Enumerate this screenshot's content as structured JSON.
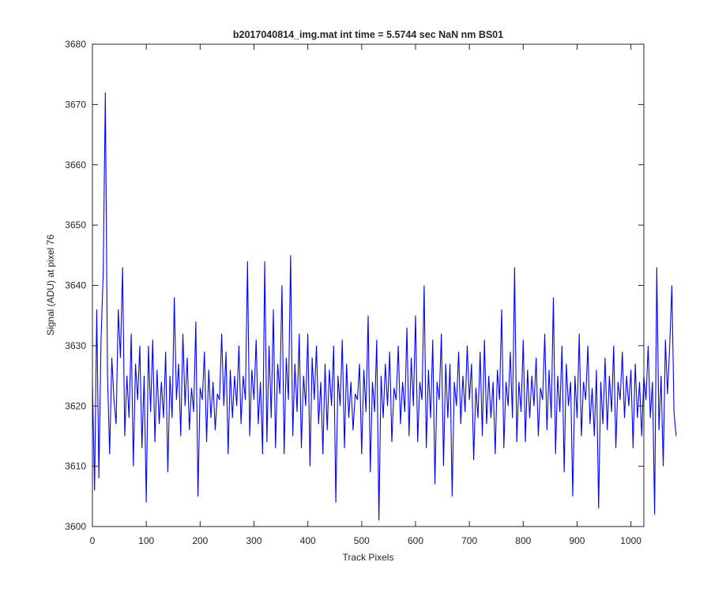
{
  "chart_data": {
    "type": "line",
    "title": "b2017040814_img.mat int time = 5.5744 sec  NaN nm BS01",
    "xlabel": "Track Pixels",
    "ylabel": "Signal (ADU) at pixel 76",
    "xlim": [
      0,
      1024
    ],
    "ylim": [
      3600,
      3680
    ],
    "xticks": [
      0,
      100,
      200,
      300,
      400,
      500,
      600,
      700,
      800,
      900,
      1000
    ],
    "yticks": [
      3600,
      3610,
      3620,
      3630,
      3640,
      3650,
      3660,
      3670,
      3680
    ],
    "grid": false,
    "legend": "none",
    "series": [
      {
        "color": "#0000ff",
        "sampling": "one sample every 4 track pixels (x = 0, 4, 8, ... 1020)",
        "values": [
          3624,
          3606,
          3636,
          3608,
          3631,
          3642,
          3672,
          3625,
          3612,
          3628,
          3621,
          3617,
          3636,
          3628,
          3643,
          3615,
          3625,
          3618,
          3632,
          3610,
          3627,
          3621,
          3630,
          3613,
          3625,
          3604,
          3630,
          3619,
          3631,
          3614,
          3626,
          3617,
          3624,
          3618,
          3629,
          3609,
          3625,
          3618,
          3638,
          3621,
          3627,
          3615,
          3632,
          3620,
          3628,
          3616,
          3623,
          3619,
          3634,
          3605,
          3623,
          3621,
          3629,
          3614,
          3626,
          3618,
          3624,
          3616,
          3622,
          3621,
          3632,
          3620,
          3629,
          3612,
          3626,
          3618,
          3625,
          3620,
          3630,
          3617,
          3625,
          3621,
          3644,
          3615,
          3626,
          3621,
          3631,
          3617,
          3624,
          3612,
          3644,
          3614,
          3630,
          3618,
          3636,
          3613,
          3627,
          3622,
          3640,
          3612,
          3628,
          3621,
          3645,
          3615,
          3627,
          3619,
          3632,
          3613,
          3625,
          3620,
          3632,
          3610,
          3628,
          3621,
          3630,
          3617,
          3624,
          3612,
          3627,
          3616,
          3626,
          3620,
          3630,
          3604,
          3625,
          3620,
          3631,
          3613,
          3627,
          3618,
          3624,
          3616,
          3622,
          3621,
          3627,
          3612,
          3626,
          3619,
          3635,
          3609,
          3624,
          3619,
          3631,
          3601,
          3625,
          3618,
          3627,
          3620,
          3629,
          3614,
          3623,
          3621,
          3630,
          3617,
          3624,
          3619,
          3633,
          3615,
          3628,
          3620,
          3635,
          3614,
          3624,
          3621,
          3640,
          3613,
          3626,
          3618,
          3631,
          3607,
          3624,
          3621,
          3632,
          3610,
          3627,
          3618,
          3627,
          3605,
          3624,
          3620,
          3629,
          3617,
          3625,
          3619,
          3630,
          3621,
          3627,
          3611,
          3623,
          3618,
          3629,
          3615,
          3631,
          3617,
          3625,
          3618,
          3624,
          3612,
          3626,
          3621,
          3636,
          3613,
          3624,
          3620,
          3629,
          3618,
          3643,
          3614,
          3624,
          3619,
          3631,
          3614,
          3626,
          3618,
          3625,
          3620,
          3628,
          3615,
          3623,
          3621,
          3632,
          3616,
          3626,
          3618,
          3638,
          3612,
          3625,
          3619,
          3630,
          3609,
          3627,
          3620,
          3624,
          3605,
          3625,
          3618,
          3632,
          3615,
          3624,
          3621,
          3630,
          3617,
          3623,
          3615,
          3626,
          3603,
          3624,
          3617,
          3628,
          3616,
          3625,
          3619,
          3630,
          3613,
          3624,
          3621,
          3629,
          3618,
          3625,
          3620,
          3626,
          3613,
          3627,
          3618,
          3624,
          3615,
          3625,
          3621,
          3630,
          3618,
          3624,
          3602,
          3643,
          3616,
          3625,
          3610,
          3631,
          3622,
          3630,
          3640,
          3619,
          3615
        ]
      }
    ]
  }
}
